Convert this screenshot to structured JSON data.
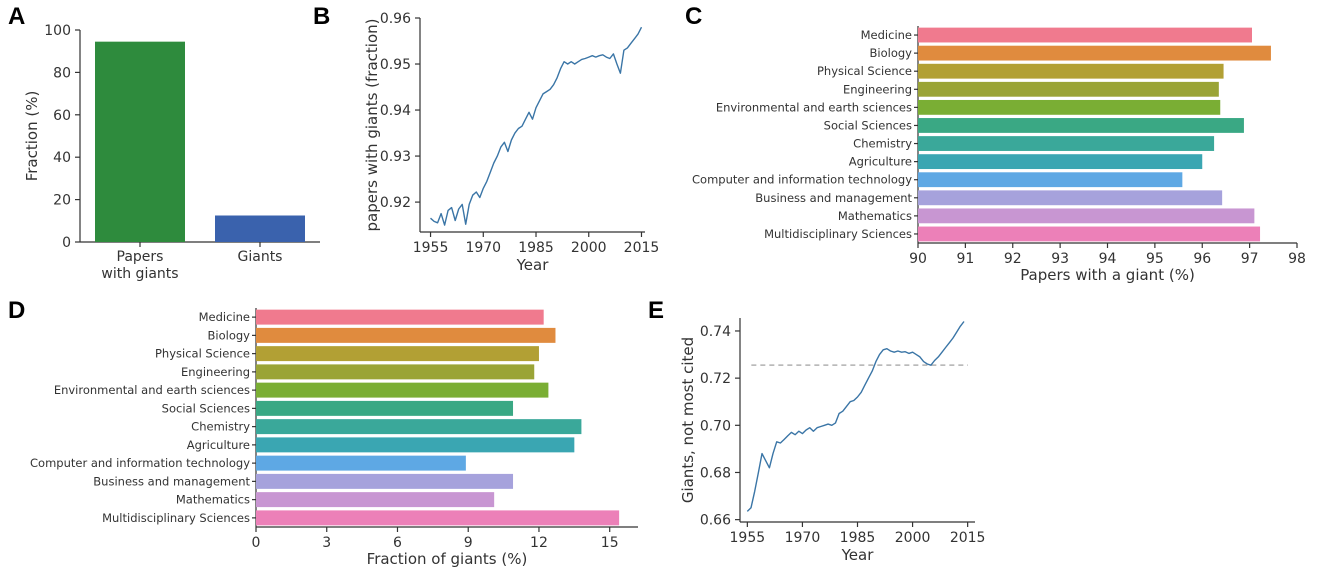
{
  "chart_data": [
    {
      "panel": "A",
      "type": "bar",
      "categories": [
        "Papers with giants",
        "Giants"
      ],
      "category_lines": [
        [
          "Papers",
          "with giants"
        ],
        [
          "Giants"
        ]
      ],
      "values": [
        94.5,
        12.5
      ],
      "colors": [
        "#2e8b3d",
        "#3a62ad"
      ],
      "title": "",
      "xlabel": "",
      "ylabel": "Fraction (%)",
      "ylim": [
        0,
        100
      ],
      "yticks": [
        0,
        20,
        40,
        60,
        80,
        100
      ]
    },
    {
      "panel": "B",
      "type": "line",
      "x": [
        1955,
        1956,
        1957,
        1958,
        1959,
        1960,
        1961,
        1962,
        1963,
        1964,
        1965,
        1966,
        1967,
        1968,
        1969,
        1970,
        1971,
        1972,
        1973,
        1974,
        1975,
        1976,
        1977,
        1978,
        1979,
        1980,
        1981,
        1982,
        1983,
        1984,
        1985,
        1986,
        1987,
        1988,
        1989,
        1990,
        1991,
        1992,
        1993,
        1994,
        1995,
        1996,
        1997,
        1998,
        1999,
        2000,
        2001,
        2002,
        2003,
        2004,
        2005,
        2006,
        2007,
        2008,
        2009,
        2010,
        2011,
        2012,
        2013,
        2014,
        2015
      ],
      "y": [
        0.9165,
        0.9158,
        0.9155,
        0.9175,
        0.915,
        0.9182,
        0.9188,
        0.916,
        0.9185,
        0.9195,
        0.9152,
        0.9195,
        0.9215,
        0.9222,
        0.921,
        0.923,
        0.9245,
        0.9265,
        0.9285,
        0.93,
        0.932,
        0.933,
        0.931,
        0.9335,
        0.935,
        0.936,
        0.9365,
        0.938,
        0.9395,
        0.938,
        0.9405,
        0.942,
        0.9435,
        0.944,
        0.9445,
        0.9455,
        0.947,
        0.949,
        0.9505,
        0.95,
        0.9505,
        0.95,
        0.9505,
        0.951,
        0.9512,
        0.9515,
        0.9518,
        0.9515,
        0.9518,
        0.952,
        0.9515,
        0.9512,
        0.9522,
        0.95,
        0.948,
        0.953,
        0.9535,
        0.9545,
        0.9555,
        0.9565,
        0.958
      ],
      "color": "#3a75a6",
      "title": "",
      "xlabel": "Year",
      "ylabel": "papers with giants (fraction)",
      "xlim": [
        1952,
        2016
      ],
      "ylim": [
        0.9135,
        0.96
      ],
      "xticks": [
        1955,
        1970,
        1985,
        2000,
        2015
      ],
      "yticks": [
        0.92,
        0.93,
        0.94,
        0.95,
        0.96
      ]
    },
    {
      "panel": "C",
      "type": "bar",
      "orientation": "horizontal",
      "categories": [
        "Medicine",
        "Biology",
        "Physical Science",
        "Engineering",
        "Environmental and earth sciences",
        "Social Sciences",
        "Chemistry",
        "Agriculture",
        "Computer and information technology",
        "Business and management",
        "Mathematics",
        "Multidisciplinary Sciences"
      ],
      "values": [
        97.05,
        97.45,
        96.45,
        96.35,
        96.38,
        96.88,
        96.25,
        96.0,
        95.58,
        96.42,
        97.1,
        97.22
      ],
      "colors": [
        "#f07a8e",
        "#e08b3e",
        "#b2a034",
        "#9aa436",
        "#7aae34",
        "#3aa884",
        "#3aa89a",
        "#3aa6b2",
        "#5ea8e4",
        "#a6a2dc",
        "#c896d2",
        "#ec80b8"
      ],
      "title": "",
      "xlabel": "Papers with a giant (%)",
      "ylabel": "",
      "xlim": [
        90,
        98
      ],
      "xticks": [
        90,
        91,
        92,
        93,
        94,
        95,
        96,
        97,
        98
      ]
    },
    {
      "panel": "D",
      "type": "bar",
      "orientation": "horizontal",
      "categories": [
        "Medicine",
        "Biology",
        "Physical Science",
        "Engineering",
        "Environmental and earth sciences",
        "Social Sciences",
        "Chemistry",
        "Agriculture",
        "Computer and information technology",
        "Business and management",
        "Mathematics",
        "Multidisciplinary Sciences"
      ],
      "values": [
        12.2,
        12.7,
        12.0,
        11.8,
        12.4,
        10.9,
        13.8,
        13.5,
        8.9,
        10.9,
        10.1,
        15.4
      ],
      "colors": [
        "#f07a8e",
        "#e08b3e",
        "#b2a034",
        "#9aa436",
        "#7aae34",
        "#3aa884",
        "#3aa89a",
        "#3aa6b2",
        "#5ea8e4",
        "#a6a2dc",
        "#c896d2",
        "#ec80b8"
      ],
      "title": "",
      "xlabel": "Fraction of giants (%)",
      "ylabel": "",
      "xlim": [
        0,
        16.2
      ],
      "xticks": [
        0,
        3,
        6,
        9,
        12,
        15
      ]
    },
    {
      "panel": "E",
      "type": "line",
      "x": [
        1955,
        1956,
        1957,
        1958,
        1959,
        1960,
        1961,
        1962,
        1963,
        1964,
        1965,
        1966,
        1967,
        1968,
        1969,
        1970,
        1971,
        1972,
        1973,
        1974,
        1975,
        1976,
        1977,
        1978,
        1979,
        1980,
        1981,
        1982,
        1983,
        1984,
        1985,
        1986,
        1987,
        1988,
        1989,
        1990,
        1991,
        1992,
        1993,
        1994,
        1995,
        1996,
        1997,
        1998,
        1999,
        2000,
        2001,
        2002,
        2003,
        2004,
        2005,
        2006,
        2007,
        2008,
        2009,
        2010,
        2011,
        2012,
        2013,
        2014
      ],
      "y": [
        0.6635,
        0.665,
        0.672,
        0.68,
        0.688,
        0.685,
        0.682,
        0.688,
        0.693,
        0.6925,
        0.694,
        0.6955,
        0.697,
        0.696,
        0.6975,
        0.6965,
        0.698,
        0.699,
        0.6975,
        0.699,
        0.6995,
        0.7,
        0.7005,
        0.7,
        0.701,
        0.705,
        0.706,
        0.708,
        0.71,
        0.7105,
        0.712,
        0.714,
        0.717,
        0.72,
        0.723,
        0.727,
        0.73,
        0.732,
        0.7325,
        0.7315,
        0.731,
        0.7315,
        0.731,
        0.7312,
        0.7305,
        0.731,
        0.73,
        0.729,
        0.727,
        0.726,
        0.7255,
        0.7275,
        0.729,
        0.731,
        0.733,
        0.735,
        0.737,
        0.7395,
        0.742,
        0.744
      ],
      "reference_line": 0.7255,
      "color": "#3a75a6",
      "title": "",
      "xlabel": "Year",
      "ylabel": "Giants, not most cited",
      "xlim": [
        1953,
        2017
      ],
      "ylim": [
        0.659,
        0.7455
      ],
      "xticks": [
        1955,
        1970,
        1985,
        2000,
        2015
      ],
      "yticks": [
        0.66,
        0.68,
        0.7,
        0.72,
        0.74
      ]
    }
  ],
  "panel_letters": [
    "A",
    "B",
    "C",
    "D",
    "E"
  ]
}
